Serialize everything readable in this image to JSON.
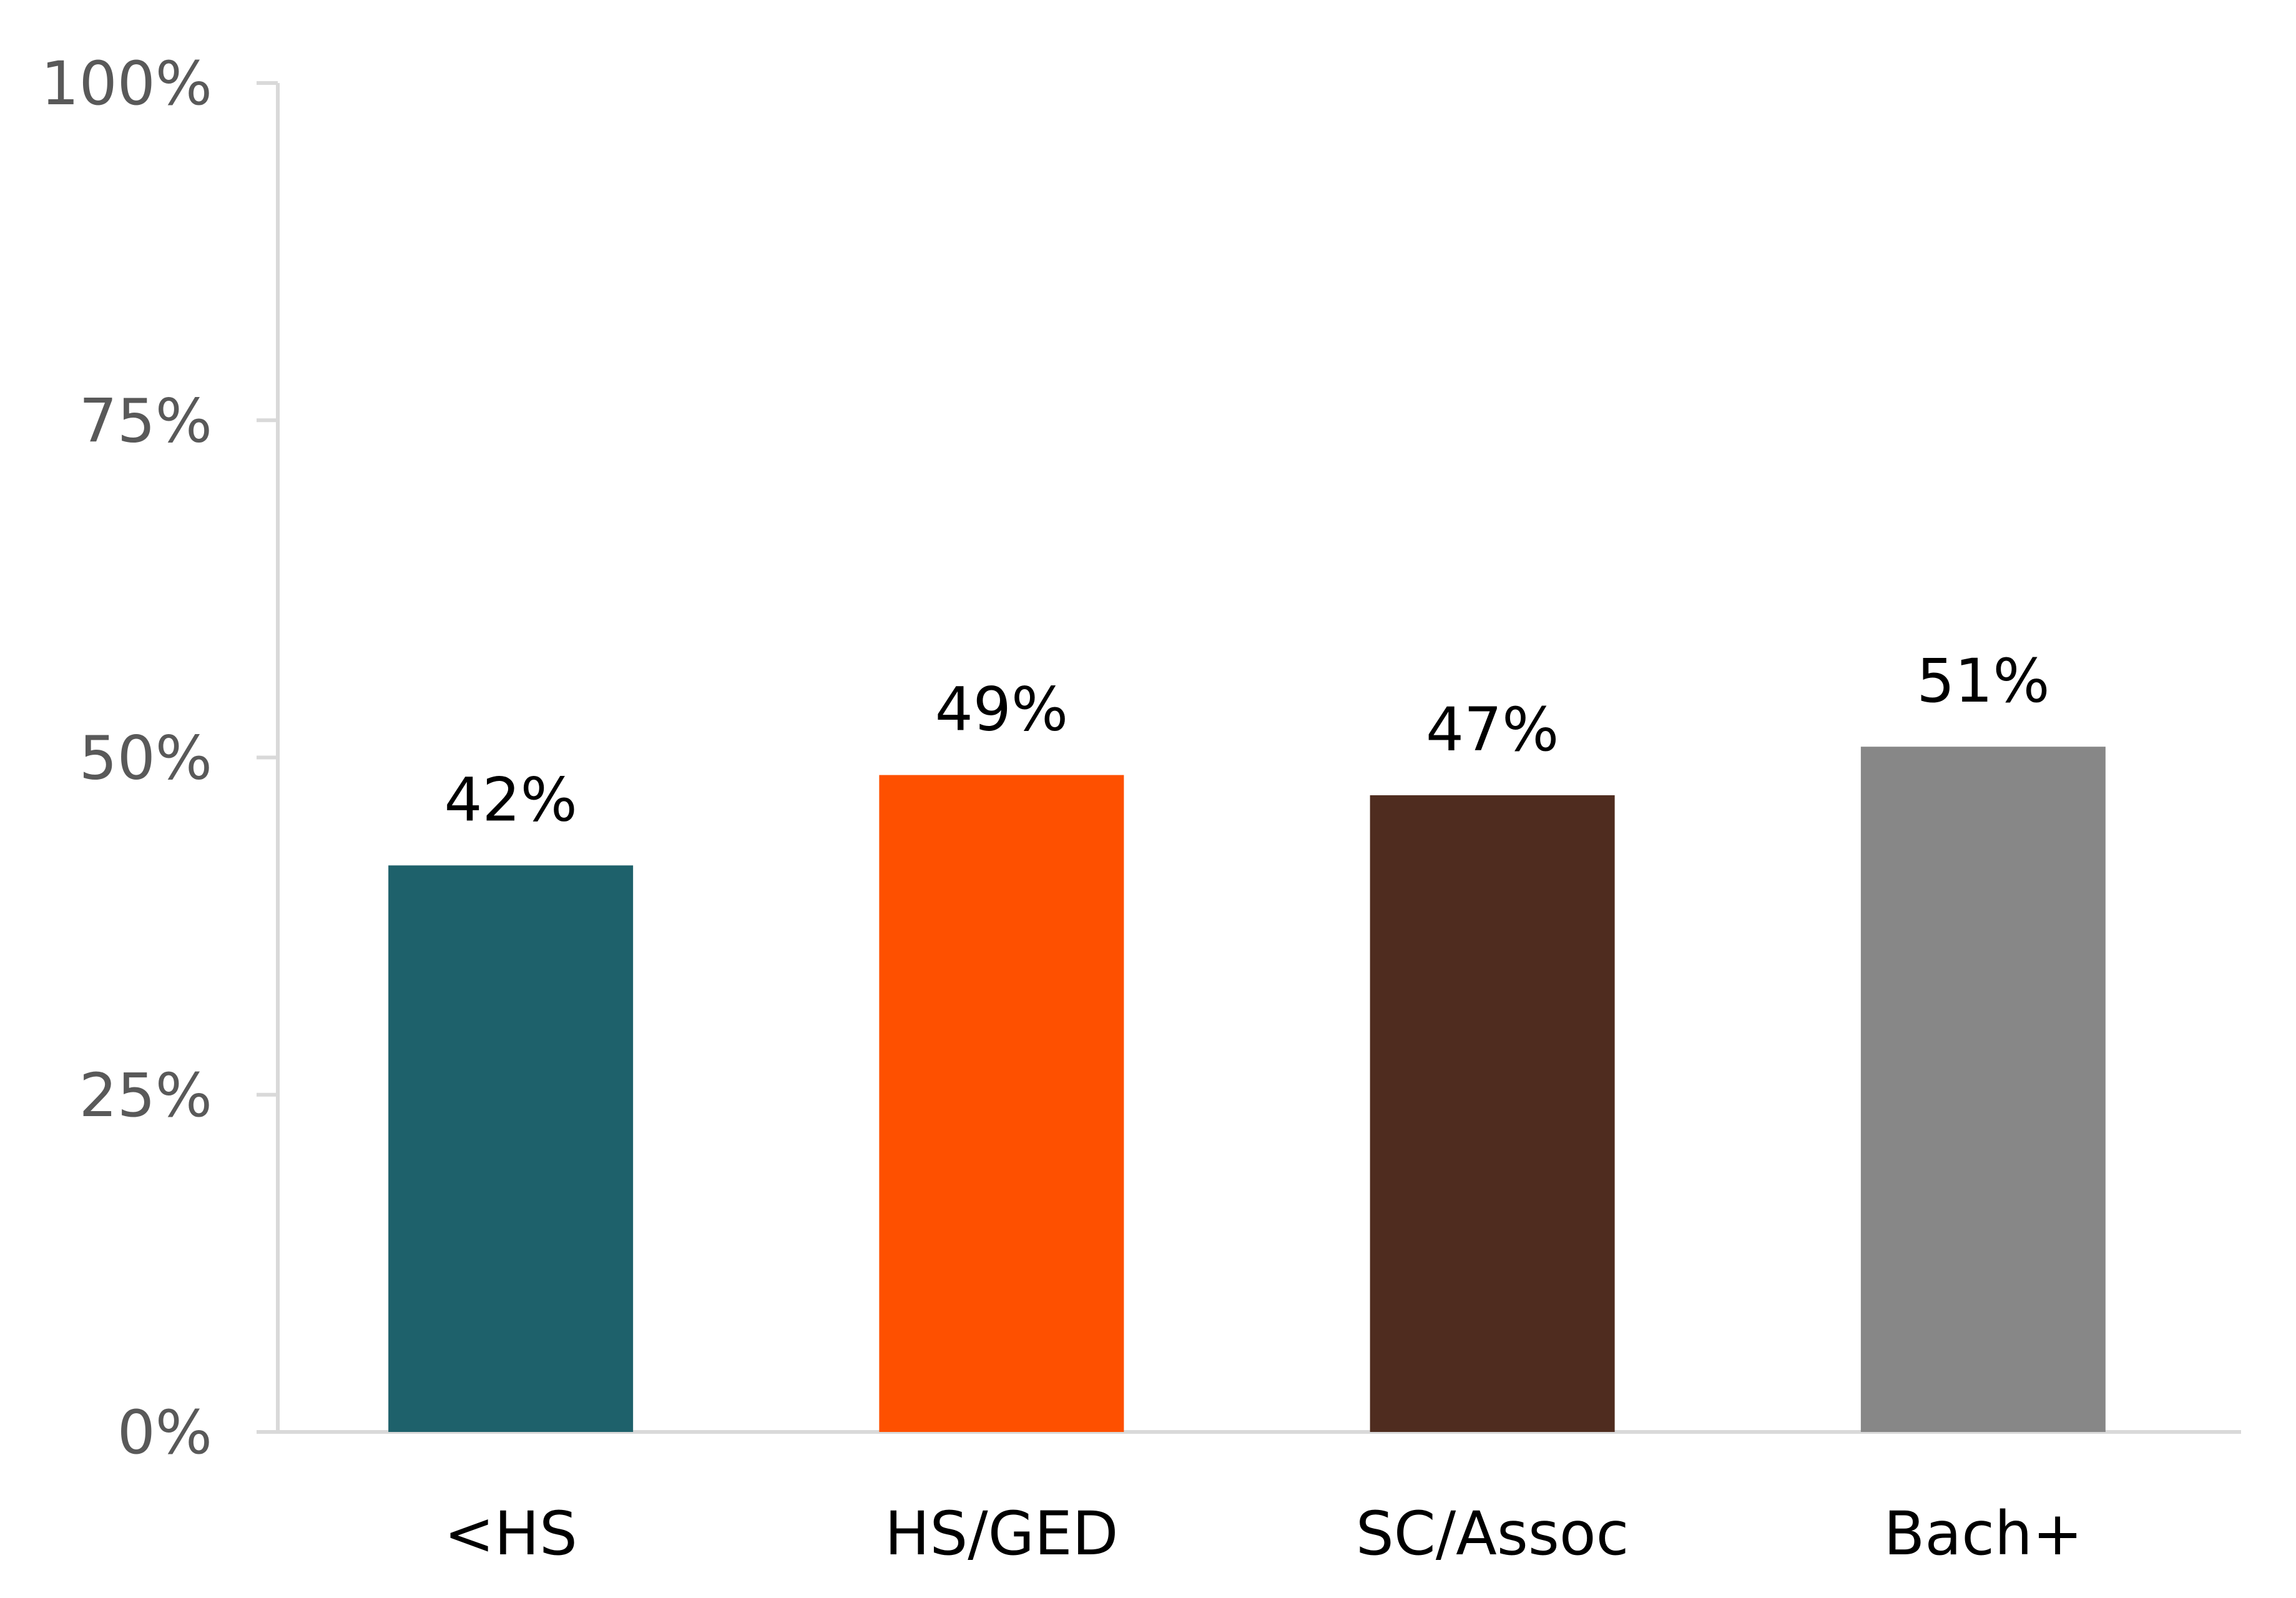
{
  "chart_data": {
    "type": "bar",
    "title": "",
    "xlabel": "",
    "ylabel": "",
    "categories": [
      "<HS",
      "HS/GED",
      "SC/Assoc",
      "Bach+"
    ],
    "values": [
      42,
      48.7,
      47.2,
      50.8
    ],
    "data_labels": [
      "42%",
      "49%",
      "47%",
      "51%"
    ],
    "colors": [
      "#1E616B",
      "#FE5000",
      "#4F2C1F",
      "#878787"
    ],
    "ylim": [
      0,
      100
    ],
    "yticks": [
      0,
      25,
      50,
      75,
      100
    ],
    "ytick_labels": [
      "0%",
      "25%",
      "50%",
      "75%",
      "100%"
    ],
    "grid": false,
    "legend": "none",
    "axis_color": "#D9D9D9"
  }
}
